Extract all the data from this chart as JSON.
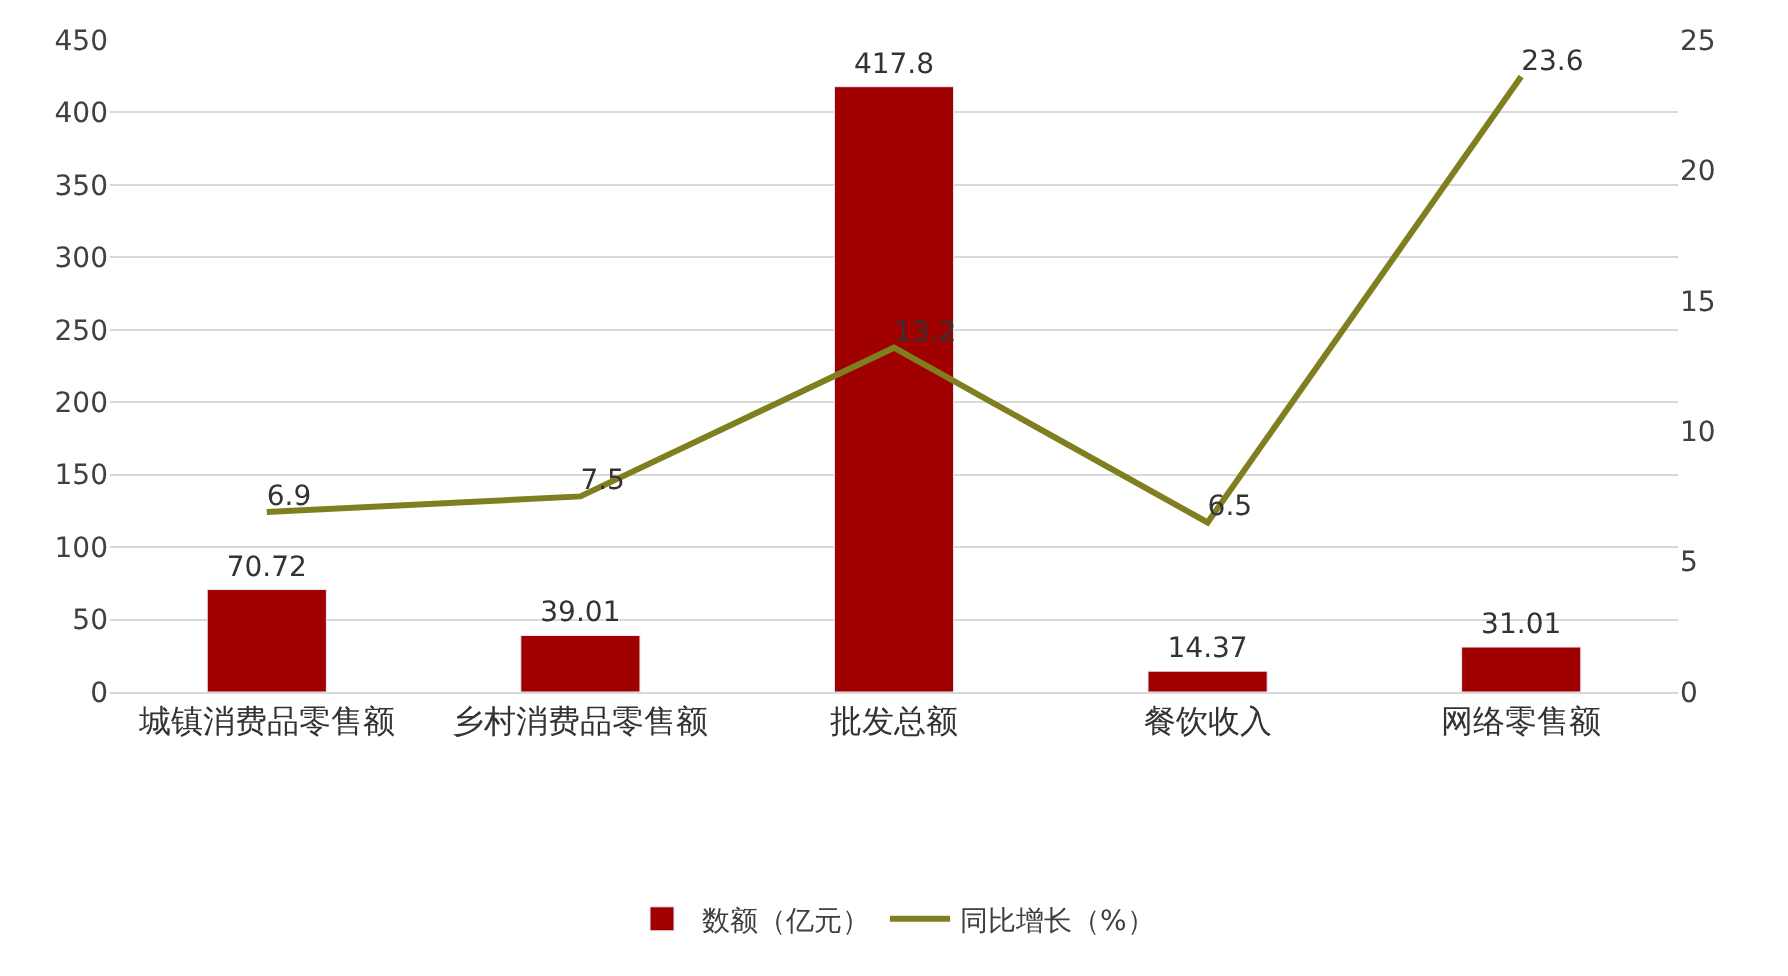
{
  "chart_data": {
    "type": "bar",
    "categories": [
      "城镇消费品零售额",
      "乡村消费品零售额",
      "批发总额",
      "餐饮收入",
      "网络零售额"
    ],
    "series": [
      {
        "name": "数额（亿元）",
        "color": "#a00000",
        "values": [
          70.72,
          39.01,
          417.8,
          14.37,
          31.01
        ]
      },
      {
        "name": "同比增长（%）",
        "type": "line",
        "axis": "y2",
        "color": "#7f7f1f",
        "marker": "none",
        "line_style": "solid",
        "values": [
          6.9,
          7.5,
          13.2,
          6.5,
          23.6
        ]
      }
    ],
    "ylim": [
      0,
      450
    ],
    "yticks": [
      0,
      50,
      100,
      150,
      200,
      250,
      300,
      350,
      400,
      450
    ],
    "y2lim": [
      0,
      25
    ],
    "y2ticks": [
      0,
      5,
      10,
      15,
      20,
      25
    ],
    "grid": "y",
    "legend": "bottom",
    "data_labels": true
  }
}
